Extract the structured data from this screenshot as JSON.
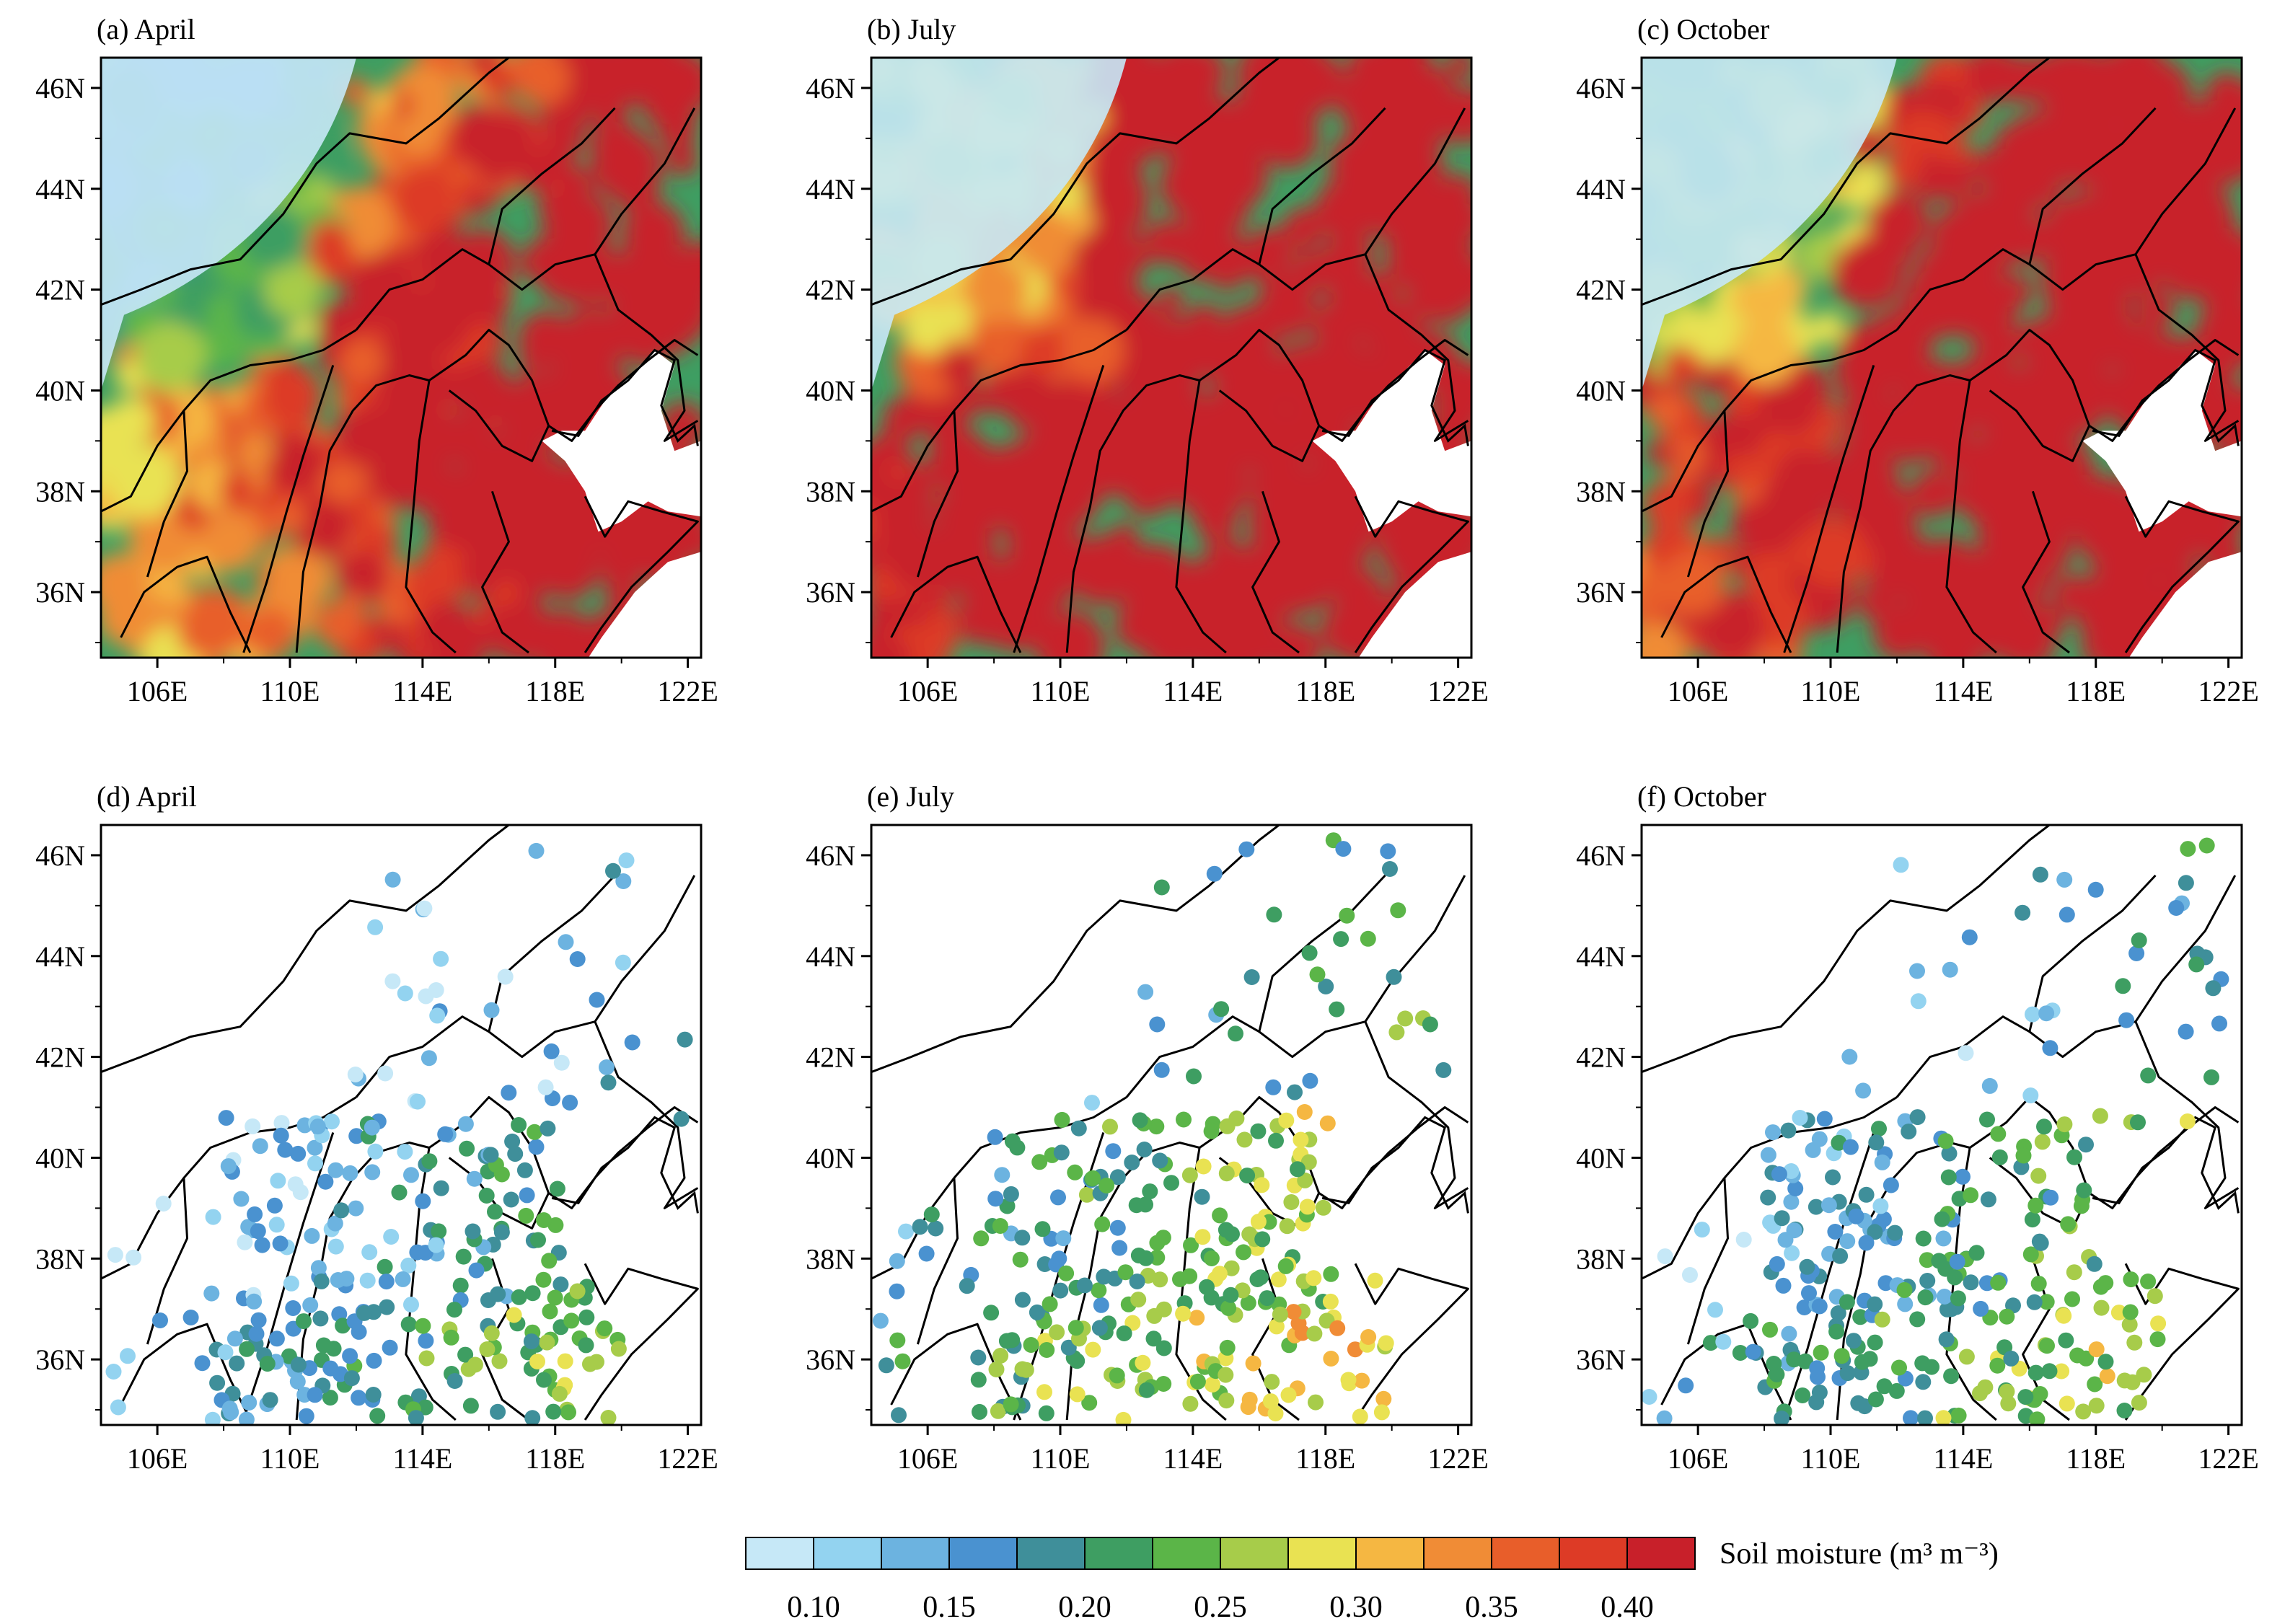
{
  "panels": [
    {
      "id": "a",
      "title": "(a) April",
      "kind": "field",
      "palette_bias": [
        0.3,
        0.18,
        0.12,
        0.1,
        0.1,
        0.08,
        0.06,
        0.06
      ]
    },
    {
      "id": "b",
      "title": "(b) July",
      "kind": "field",
      "palette_bias": [
        0.1,
        0.1,
        0.12,
        0.14,
        0.16,
        0.14,
        0.14,
        0.1
      ]
    },
    {
      "id": "c",
      "title": "(c) October",
      "kind": "field",
      "palette_bias": [
        0.2,
        0.16,
        0.14,
        0.14,
        0.12,
        0.1,
        0.08,
        0.06
      ]
    },
    {
      "id": "d",
      "title": "(d) April",
      "kind": "stations"
    },
    {
      "id": "e",
      "title": "(e) July",
      "kind": "stations"
    },
    {
      "id": "f",
      "title": "(f) October",
      "kind": "stations"
    }
  ],
  "axes": {
    "lat_ticks": [
      "46N",
      "44N",
      "42N",
      "40N",
      "38N",
      "36N"
    ],
    "lat_values": [
      46,
      44,
      42,
      40,
      38,
      36
    ],
    "lon_ticks": [
      "106E",
      "110E",
      "114E",
      "118E",
      "122E"
    ],
    "lon_values": [
      106,
      110,
      114,
      118,
      122
    ],
    "lat_range": [
      34.7,
      46.6
    ],
    "lon_range": [
      104.3,
      122.4
    ]
  },
  "colorbar": {
    "title": "Soil moisture (m³ m⁻³)",
    "labels": [
      "0.10",
      "0.15",
      "0.20",
      "0.25",
      "0.30",
      "0.35",
      "0.40"
    ],
    "colors": [
      "#c6e8f7",
      "#93d3f0",
      "#6cb3e0",
      "#4a92d0",
      "#3f8f9a",
      "#3e9e62",
      "#5bb548",
      "#a7cc4a",
      "#e9e252",
      "#f5b742",
      "#f08c36",
      "#e85e2a",
      "#dd3b26",
      "#c8202a"
    ]
  }
}
